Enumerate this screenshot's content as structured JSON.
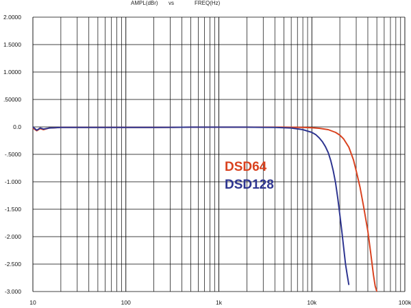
{
  "chart_data": {
    "type": "line",
    "title_parts": [
      "AMPL(dBr)",
      "vs",
      "FREQ(Hz)"
    ],
    "x_scale": "log",
    "xlim": [
      10,
      100000
    ],
    "ylim": [
      -3.0,
      2.0
    ],
    "grid": true,
    "x_tick_labels": [
      {
        "value": 10,
        "label": "10"
      },
      {
        "value": 100,
        "label": "100"
      },
      {
        "value": 1000,
        "label": "1k"
      },
      {
        "value": 10000,
        "label": "10k"
      },
      {
        "value": 100000,
        "label": "100k"
      }
    ],
    "y_tick_labels": [
      {
        "value": 2.0,
        "label": "2.0000"
      },
      {
        "value": 1.5,
        "label": "1.5000"
      },
      {
        "value": 1.0,
        "label": "1.0000"
      },
      {
        "value": 0.5,
        "label": ".50000"
      },
      {
        "value": 0.0,
        "label": "0.0"
      },
      {
        "value": -0.5,
        "label": "-.5000"
      },
      {
        "value": -1.0,
        "label": "-1.000"
      },
      {
        "value": -1.5,
        "label": "-1.500"
      },
      {
        "value": -2.0,
        "label": "-2.000"
      },
      {
        "value": -2.5,
        "label": "-2.500"
      },
      {
        "value": -3.0,
        "label": "-3.000"
      }
    ],
    "series": [
      {
        "name": "DSD64",
        "color": "#d9421f",
        "x": [
          10,
          11,
          12,
          13,
          15,
          20,
          30,
          50,
          100,
          200,
          500,
          1000,
          2000,
          5000,
          8000,
          10000,
          12000,
          15000,
          18000,
          20000,
          22000,
          25000,
          28000,
          30000,
          33000,
          36000,
          40000,
          43000,
          46000,
          48000,
          50000
        ],
        "y": [
          -0.02,
          -0.07,
          -0.03,
          -0.05,
          -0.02,
          -0.01,
          -0.01,
          -0.01,
          -0.01,
          -0.01,
          -0.005,
          -0.005,
          -0.005,
          -0.005,
          -0.01,
          -0.015,
          -0.025,
          -0.05,
          -0.1,
          -0.15,
          -0.22,
          -0.37,
          -0.6,
          -0.8,
          -1.1,
          -1.45,
          -1.9,
          -2.3,
          -2.7,
          -2.9,
          -3.0
        ]
      },
      {
        "name": "DSD128",
        "color": "#2e3590",
        "x": [
          10,
          11,
          12,
          13,
          15,
          20,
          30,
          50,
          100,
          200,
          500,
          1000,
          2000,
          4000,
          6000,
          8000,
          10000,
          11000,
          12000,
          13000,
          14000,
          15000,
          16000,
          17000,
          18000,
          19000,
          20000,
          21000,
          22000,
          23000,
          24000,
          25000
        ],
        "y": [
          0.0,
          -0.06,
          -0.02,
          -0.04,
          -0.02,
          -0.01,
          -0.01,
          -0.01,
          -0.01,
          -0.01,
          -0.005,
          -0.005,
          -0.005,
          -0.01,
          -0.02,
          -0.05,
          -0.1,
          -0.14,
          -0.2,
          -0.27,
          -0.36,
          -0.47,
          -0.62,
          -0.8,
          -1.02,
          -1.3,
          -1.6,
          -1.9,
          -2.2,
          -2.5,
          -2.7,
          -2.88
        ]
      }
    ]
  }
}
